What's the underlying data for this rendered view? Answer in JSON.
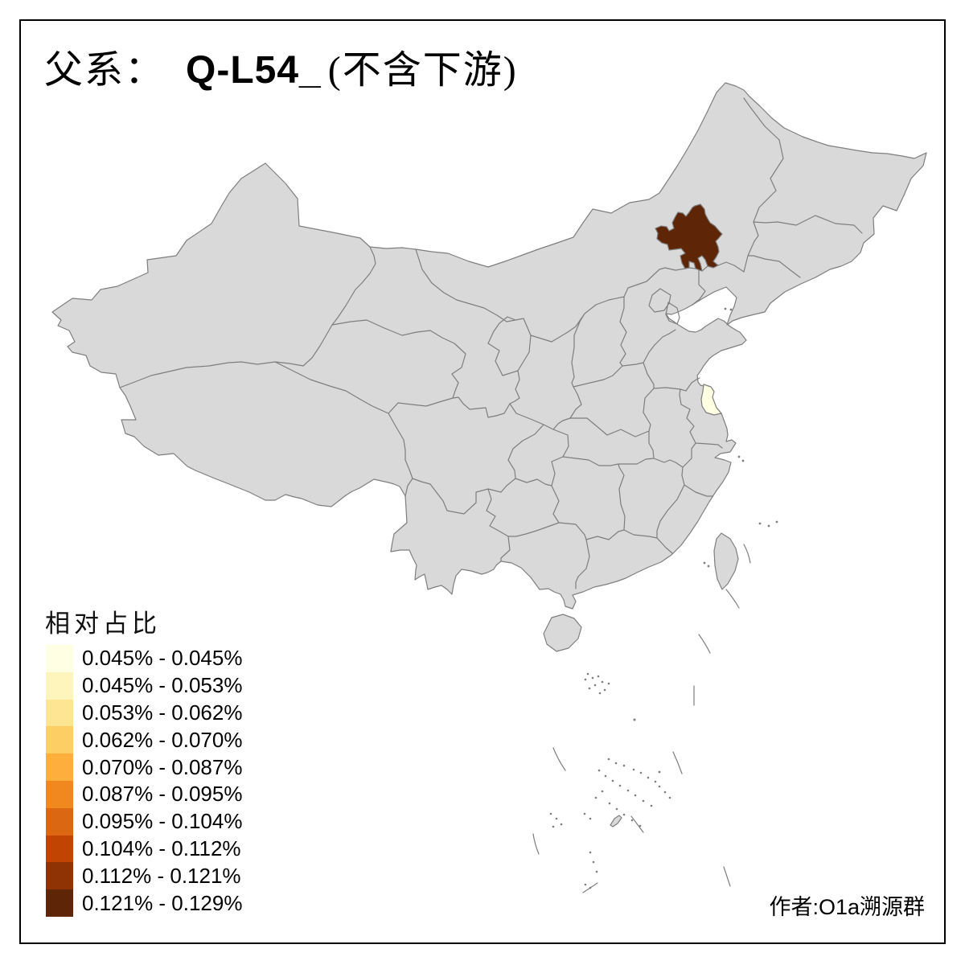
{
  "title": {
    "prefix": "父系：",
    "haplogroup": "Q-L54_",
    "suffix": "(不含下游)"
  },
  "legend": {
    "title": "相对占比",
    "bins": [
      {
        "label": "0.045% - 0.045%",
        "color": "#FFFFE3"
      },
      {
        "label": "0.045% - 0.053%",
        "color": "#FEF5BC"
      },
      {
        "label": "0.053% - 0.062%",
        "color": "#FEE593"
      },
      {
        "label": "0.062% - 0.070%",
        "color": "#FDCE64"
      },
      {
        "label": "0.070% - 0.087%",
        "color": "#FDAE3D"
      },
      {
        "label": "0.087% - 0.095%",
        "color": "#F1871F"
      },
      {
        "label": "0.095% - 0.104%",
        "color": "#DC6713"
      },
      {
        "label": "0.104% - 0.112%",
        "color": "#C14402"
      },
      {
        "label": "0.112% - 0.121%",
        "color": "#8F3204"
      },
      {
        "label": "0.121% - 0.129%",
        "color": "#5E2607"
      }
    ]
  },
  "attribution": "作者:O1a溯源群",
  "colors": {
    "background": "#FFFFFF",
    "frame": "#000000",
    "land": "#D9D9D9",
    "border": "#7E7E7E",
    "sea": "#FFFFFF"
  },
  "map": {
    "regions": [
      {
        "name": "northeast-prefecture-highlight",
        "bin_label": "0.121% - 0.129%",
        "color": "#5E2607"
      },
      {
        "name": "east-coast-prefecture-highlight",
        "bin_label": "0.045% - 0.045%",
        "color": "#FFFFE3"
      }
    ]
  }
}
